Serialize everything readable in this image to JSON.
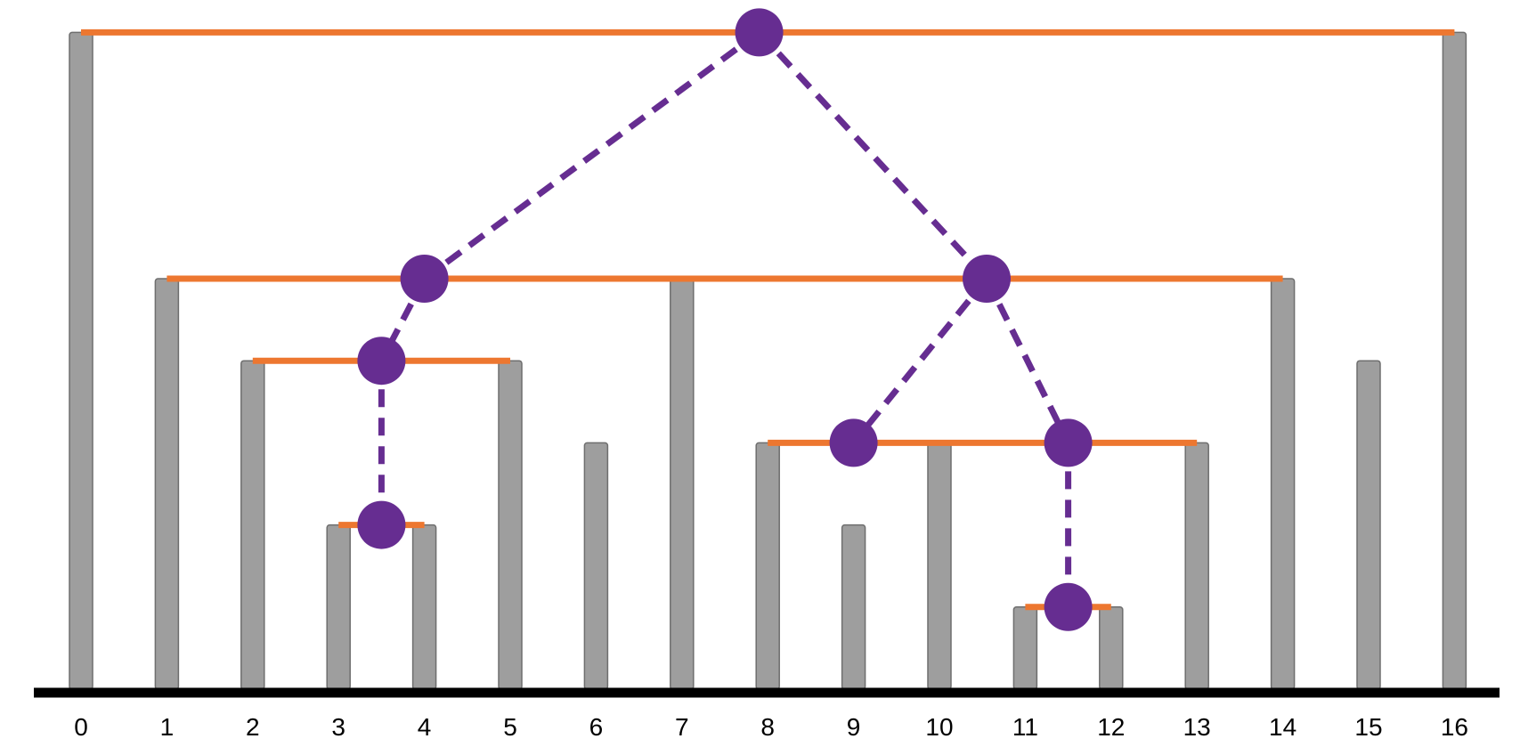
{
  "colors": {
    "bar_fill": "#9e9e9e",
    "bar_stroke": "#6e6e6e",
    "span_line": "#ed7730",
    "node_fill": "#662d91",
    "baseline": "#000000",
    "background": "#ffffff"
  },
  "diagram": {
    "bars": [
      {
        "label": "0",
        "height": 8
      },
      {
        "label": "1",
        "height": 5
      },
      {
        "label": "2",
        "height": 4
      },
      {
        "label": "3",
        "height": 2
      },
      {
        "label": "4",
        "height": 2
      },
      {
        "label": "5",
        "height": 4
      },
      {
        "label": "6",
        "height": 3
      },
      {
        "label": "7",
        "height": 5
      },
      {
        "label": "8",
        "height": 3
      },
      {
        "label": "9",
        "height": 2
      },
      {
        "label": "10",
        "height": 3
      },
      {
        "label": "11",
        "height": 1
      },
      {
        "label": "12",
        "height": 1
      },
      {
        "label": "13",
        "height": 3
      },
      {
        "label": "14",
        "height": 5
      },
      {
        "label": "15",
        "height": 4
      },
      {
        "label": "16",
        "height": 8
      }
    ],
    "spans": [
      {
        "from": 0,
        "to": 16,
        "level": 8
      },
      {
        "from": 1,
        "to": 14,
        "level": 5
      },
      {
        "from": 2,
        "to": 5,
        "level": 4
      },
      {
        "from": 3,
        "to": 4,
        "level": 2
      },
      {
        "from": 8,
        "to": 13,
        "level": 3
      },
      {
        "from": 11,
        "to": 12,
        "level": 1
      }
    ],
    "nodes": [
      {
        "id": "root",
        "x": 7.9,
        "level": 8
      },
      {
        "id": "left",
        "x": 4.0,
        "level": 5
      },
      {
        "id": "right",
        "x": 10.55,
        "level": 5
      },
      {
        "id": "left-child",
        "x": 3.5,
        "level": 4
      },
      {
        "id": "left-leaf",
        "x": 3.5,
        "level": 2
      },
      {
        "id": "right-left",
        "x": 9.0,
        "level": 3
      },
      {
        "id": "right-right",
        "x": 11.5,
        "level": 3
      },
      {
        "id": "right-leaf",
        "x": 11.5,
        "level": 1
      }
    ],
    "edges": [
      [
        "root",
        "left"
      ],
      [
        "root",
        "right"
      ],
      [
        "left",
        "left-child"
      ],
      [
        "left-child",
        "left-leaf"
      ],
      [
        "right",
        "right-left"
      ],
      [
        "right",
        "right-right"
      ],
      [
        "right-right",
        "right-leaf"
      ]
    ]
  }
}
